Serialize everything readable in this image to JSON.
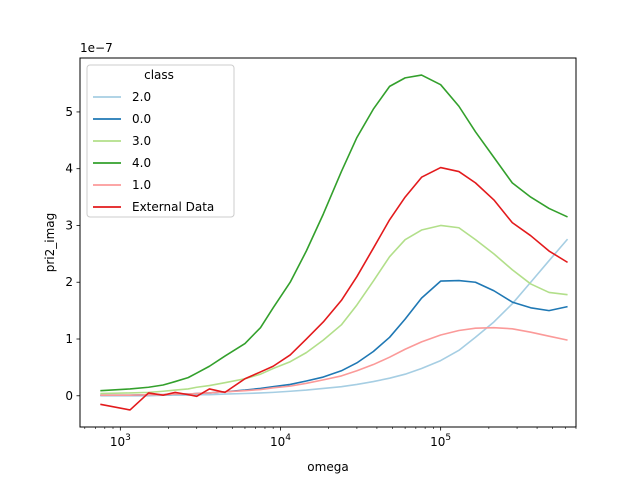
{
  "chart_data": {
    "type": "line",
    "xlabel": "omega",
    "ylabel": "pri2_imag",
    "x_scale": "log",
    "xlim": [
      560,
      700000
    ],
    "ylim": [
      -0.55,
      5.95
    ],
    "y_multiplier_label": "1e−7",
    "x_ticks": [
      {
        "value": 1000,
        "base": "10",
        "exp": "3"
      },
      {
        "value": 10000,
        "base": "10",
        "exp": "4"
      },
      {
        "value": 100000,
        "base": "10",
        "exp": "5"
      }
    ],
    "y_ticks": [
      0,
      1,
      2,
      3,
      4,
      5
    ],
    "grid": false,
    "legend": {
      "title": "class",
      "placement": "top-left"
    },
    "x": [
      750,
      1150,
      1500,
      1850,
      2200,
      2650,
      3000,
      3600,
      4500,
      6000,
      7500,
      9000,
      11500,
      14500,
      18500,
      24000,
      30000,
      38000,
      48000,
      60000,
      76000,
      100000,
      130000,
      165000,
      215000,
      280000,
      365000,
      475000,
      620000
    ],
    "series": [
      {
        "name": "2.0",
        "color": "#a6cee3",
        "values": [
          0.0,
          0.0,
          0.0,
          0.01,
          0.01,
          0.01,
          0.02,
          0.02,
          0.03,
          0.04,
          0.05,
          0.06,
          0.08,
          0.1,
          0.13,
          0.16,
          0.2,
          0.25,
          0.31,
          0.38,
          0.48,
          0.62,
          0.8,
          1.03,
          1.3,
          1.62,
          2.0,
          2.38,
          2.76
        ]
      },
      {
        "name": "0.0",
        "color": "#1f78b4",
        "values": [
          0.01,
          0.01,
          0.02,
          0.02,
          0.03,
          0.03,
          0.04,
          0.05,
          0.07,
          0.1,
          0.13,
          0.16,
          0.2,
          0.26,
          0.33,
          0.44,
          0.58,
          0.78,
          1.03,
          1.35,
          1.72,
          2.02,
          2.03,
          2.0,
          1.85,
          1.65,
          1.55,
          1.5,
          1.57
        ]
      },
      {
        "name": "3.0",
        "color": "#b2df8a",
        "values": [
          0.04,
          0.05,
          0.06,
          0.08,
          0.1,
          0.12,
          0.15,
          0.18,
          0.23,
          0.3,
          0.38,
          0.48,
          0.6,
          0.76,
          0.98,
          1.25,
          1.6,
          2.02,
          2.45,
          2.75,
          2.92,
          3.0,
          2.96,
          2.75,
          2.5,
          2.22,
          1.97,
          1.82,
          1.78
        ]
      },
      {
        "name": "4.0",
        "color": "#33a02c",
        "values": [
          0.09,
          0.12,
          0.15,
          0.19,
          0.25,
          0.32,
          0.4,
          0.52,
          0.7,
          0.92,
          1.2,
          1.55,
          2.0,
          2.55,
          3.2,
          3.95,
          4.55,
          5.05,
          5.45,
          5.6,
          5.65,
          5.48,
          5.1,
          4.65,
          4.2,
          3.75,
          3.5,
          3.3,
          3.15
        ]
      },
      {
        "name": "1.0",
        "color": "#fb9a99",
        "values": [
          0.01,
          0.01,
          0.02,
          0.02,
          0.03,
          0.03,
          0.04,
          0.05,
          0.07,
          0.09,
          0.11,
          0.14,
          0.17,
          0.22,
          0.28,
          0.35,
          0.44,
          0.55,
          0.68,
          0.82,
          0.95,
          1.07,
          1.15,
          1.19,
          1.2,
          1.18,
          1.12,
          1.05,
          0.98
        ]
      },
      {
        "name": "External Data",
        "color": "#e31a1c",
        "values": [
          -0.15,
          -0.25,
          0.05,
          0.01,
          0.06,
          0.02,
          -0.01,
          0.12,
          0.06,
          0.3,
          0.42,
          0.52,
          0.72,
          1.0,
          1.3,
          1.68,
          2.1,
          2.6,
          3.1,
          3.5,
          3.85,
          4.02,
          3.95,
          3.75,
          3.45,
          3.05,
          2.82,
          2.55,
          2.35
        ]
      }
    ]
  }
}
